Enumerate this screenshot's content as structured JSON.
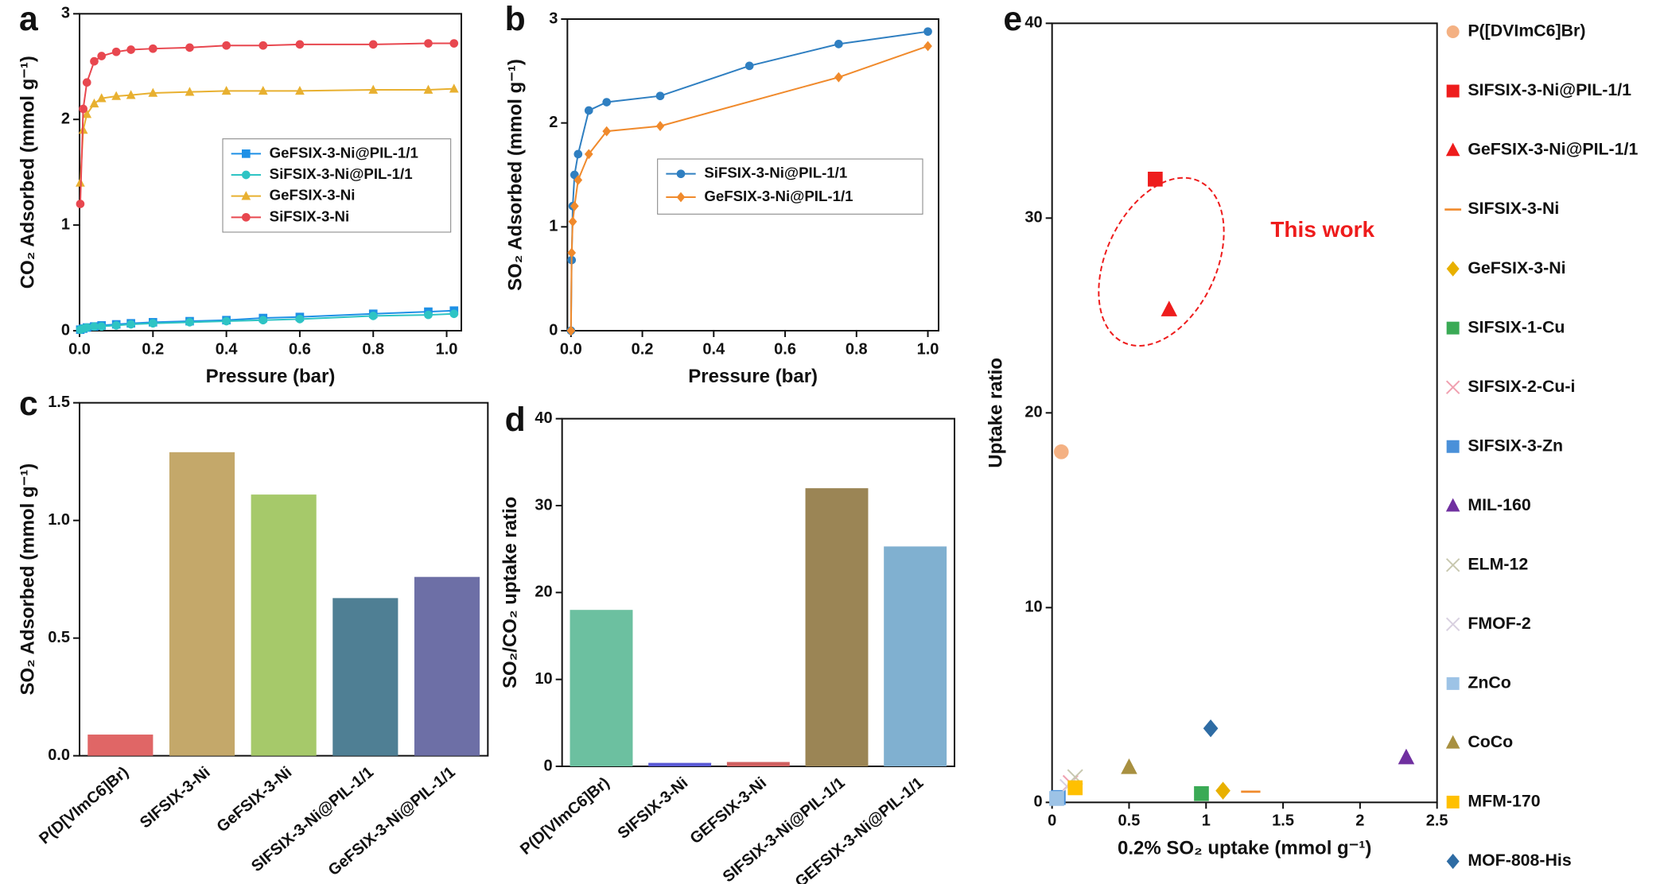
{
  "chart_data": [
    {
      "type": "line",
      "label": "a",
      "xlabel": "Pressure (bar)",
      "ylabel": "CO₂ Adsorbed (mmol g⁻¹)",
      "xlim": [
        0,
        1.04
      ],
      "ylim": [
        0,
        3
      ],
      "xticks": [
        {
          "value": 0,
          "label": "0.0"
        },
        0.2,
        0.4,
        0.6,
        0.8,
        {
          "value": 1,
          "label": "1.0"
        }
      ],
      "yticks": [
        0,
        1,
        2,
        3
      ],
      "legend": "right",
      "x": [
        0.002,
        0.01,
        0.02,
        0.04,
        0.06,
        0.1,
        0.14,
        0.2,
        0.3,
        0.4,
        0.5,
        0.6,
        0.8,
        0.95,
        1.02
      ],
      "series": [
        {
          "name": "GeFSIX-3-Ni@PIL-1/1",
          "color": "#1e90e6",
          "marker": "square",
          "values": [
            0.01,
            0.02,
            0.03,
            0.04,
            0.05,
            0.06,
            0.07,
            0.08,
            0.09,
            0.1,
            0.12,
            0.13,
            0.16,
            0.18,
            0.19
          ]
        },
        {
          "name": "SiFSIX-3-Ni@PIL-1/1",
          "color": "#2ec4c4",
          "marker": "circle",
          "values": [
            0.01,
            0.02,
            0.03,
            0.04,
            0.04,
            0.05,
            0.06,
            0.07,
            0.08,
            0.09,
            0.1,
            0.11,
            0.14,
            0.15,
            0.16
          ]
        },
        {
          "name": "GeFSIX-3-Ni",
          "color": "#e8b030",
          "marker": "triangle",
          "values": [
            1.4,
            1.9,
            2.05,
            2.15,
            2.2,
            2.22,
            2.23,
            2.25,
            2.26,
            2.27,
            2.27,
            2.27,
            2.28,
            2.28,
            2.29
          ]
        },
        {
          "name": "SiFSIX-3-Ni",
          "color": "#e8474f",
          "marker": "circle",
          "values": [
            1.2,
            2.1,
            2.35,
            2.55,
            2.6,
            2.64,
            2.66,
            2.67,
            2.68,
            2.7,
            2.7,
            2.71,
            2.71,
            2.72,
            2.72
          ]
        }
      ]
    },
    {
      "type": "line",
      "label": "b",
      "xlabel": "Pressure (bar)",
      "ylabel": "SO₂ Adsorbed (mmol g⁻¹)",
      "xlim": [
        -0.01,
        1.03
      ],
      "ylim": [
        0,
        3
      ],
      "xticks": [
        {
          "value": 0,
          "label": "0.0"
        },
        0.2,
        0.4,
        0.6,
        0.8,
        {
          "value": 1,
          "label": "1.0"
        }
      ],
      "yticks": [
        0,
        1,
        2,
        3
      ],
      "legend": "right",
      "series": [
        {
          "name": "SiFSIX-3-Ni@PIL-1/1",
          "color": "#2f7fc1",
          "marker": "circle",
          "x": [
            0,
            0.002,
            0.005,
            0.01,
            0.02,
            0.05,
            0.1,
            0.25,
            0.5,
            0.75,
            1.0
          ],
          "values": [
            0,
            0.68,
            1.2,
            1.5,
            1.7,
            2.12,
            2.2,
            2.26,
            2.55,
            2.76,
            2.88
          ]
        },
        {
          "name": "GeFSIX-3-Ni@PIL-1/1",
          "color": "#f08a2c",
          "marker": "diamond",
          "x": [
            0,
            0.002,
            0.005,
            0.01,
            0.02,
            0.05,
            0.1,
            0.25,
            0.75,
            1.0
          ],
          "values": [
            0,
            0.75,
            1.05,
            1.2,
            1.45,
            1.7,
            1.92,
            1.97,
            2.44,
            2.74
          ]
        }
      ]
    },
    {
      "type": "bar",
      "label": "c",
      "ylabel": "SO₂ Adsorbed (mmol g⁻¹)",
      "categories": [
        "P(D[VImC6]Br)",
        "SIFSIX-3-Ni",
        "GeFSIX-3-Ni",
        "SIFSIX-3-Ni@PIL-1/1",
        "GeFSIX-3-Ni@PIL-1/1"
      ],
      "values": [
        0.09,
        1.29,
        1.11,
        0.67,
        0.76
      ],
      "colors": [
        "#e06666",
        "#c4a86a",
        "#a6c96a",
        "#4f7f94",
        "#6d6fa6"
      ],
      "ylim": [
        0,
        1.5
      ],
      "yticks": [
        {
          "value": 0,
          "label": "0.0"
        },
        0.5,
        {
          "value": 1,
          "label": "1.0"
        },
        1.5
      ]
    },
    {
      "type": "bar",
      "label": "d",
      "ylabel": "SO₂/CO₂ uptake ratio",
      "categories": [
        "P(D[VImC6]Br)",
        "SIFSIX-3-Ni",
        "GEFSIX-3-Ni",
        "SIFSIX-3-Ni@PIL-1/1",
        "GEFSIX-3-Ni@PIL-1/1"
      ],
      "values": [
        18,
        0.4,
        0.5,
        32,
        25.3
      ],
      "colors": [
        "#6cc0a0",
        "#5a5ad6",
        "#d06060",
        "#9b8555",
        "#80b0d0"
      ],
      "ylim": [
        0,
        40
      ],
      "yticks": [
        0,
        10,
        20,
        30,
        40
      ]
    },
    {
      "type": "scatter",
      "label": "e",
      "xlabel": "0.2% SO₂ uptake (mmol g⁻¹)",
      "ylabel": "Uptake ratio",
      "xlim": [
        0,
        2.5
      ],
      "ylim": [
        0,
        40
      ],
      "xticks": [
        0,
        0.5,
        1,
        1.5,
        2,
        2.5
      ],
      "yticks": [
        0,
        10,
        20,
        30,
        40
      ],
      "legend": "outside",
      "annotation": "This work",
      "series": [
        {
          "name": "P([DVImC6]Br)",
          "color": "#f4b183",
          "marker": "circle",
          "x": [
            0.06
          ],
          "values": [
            18
          ]
        },
        {
          "name": "SIFSIX-3-Ni@PIL-1/1",
          "color": "#ee1c1c",
          "marker": "square",
          "x": [
            0.67
          ],
          "values": [
            32
          ]
        },
        {
          "name": "GeFSIX-3-Ni@PIL-1/1",
          "color": "#ee1c1c",
          "marker": "triangle",
          "x": [
            0.76
          ],
          "values": [
            25.3
          ]
        },
        {
          "name": "SIFSIX-3-Ni",
          "color": "#f08a2c",
          "marker": "dash",
          "x": [
            1.29
          ],
          "values": [
            0.55
          ]
        },
        {
          "name": "GeFSIX-3-Ni",
          "color": "#e8b000",
          "marker": "diamond",
          "x": [
            1.11
          ],
          "values": [
            0.6
          ]
        },
        {
          "name": "SIFSIX-1-Cu",
          "color": "#3aaa55",
          "marker": "square",
          "x": [
            0.97
          ],
          "values": [
            0.45
          ]
        },
        {
          "name": "SIFSIX-2-Cu-i",
          "color": "#f0a0b0",
          "marker": "x",
          "x": [
            0.12
          ],
          "values": [
            1.0
          ]
        },
        {
          "name": "SIFSIX-3-Zn",
          "color": "#4a90d9",
          "marker": "square",
          "x": [
            0.04
          ],
          "values": [
            0.25
          ]
        },
        {
          "name": "MIL-160",
          "color": "#7030a0",
          "marker": "triangle",
          "x": [
            2.3
          ],
          "values": [
            2.3
          ]
        },
        {
          "name": "ELM-12",
          "color": "#c8c8b0",
          "marker": "x",
          "x": [
            0.15
          ],
          "values": [
            1.3
          ]
        },
        {
          "name": "FMOF-2",
          "color": "#d8d0e0",
          "marker": "x",
          "x": [
            0.1
          ],
          "values": [
            0.8
          ]
        },
        {
          "name": "ZnCo",
          "color": "#9dc3e6",
          "marker": "square",
          "x": [
            0.03
          ],
          "values": [
            0.2
          ]
        },
        {
          "name": "CoCo",
          "color": "#a89040",
          "marker": "triangle",
          "x": [
            0.5
          ],
          "values": [
            1.8
          ]
        },
        {
          "name": "MFM-170",
          "color": "#ffc000",
          "marker": "square",
          "x": [
            0.15
          ],
          "values": [
            0.75
          ]
        },
        {
          "name": "MOF-808-His",
          "color": "#2e6ca4",
          "marker": "diamond",
          "x": [
            1.03
          ],
          "values": [
            3.8
          ]
        }
      ]
    }
  ]
}
